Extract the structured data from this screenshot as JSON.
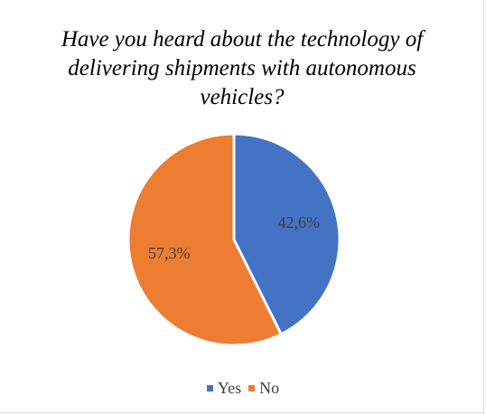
{
  "chart_data": {
    "type": "pie",
    "title": "Have you heard about the technology of delivering shipments with autonomous vehicles?",
    "categories": [
      "Yes",
      "No"
    ],
    "values": [
      42.6,
      57.3
    ],
    "labels": [
      "42,6%",
      "57,3%"
    ],
    "colors": [
      "#4472C4",
      "#ED7D31"
    ],
    "legend_position": "bottom"
  }
}
